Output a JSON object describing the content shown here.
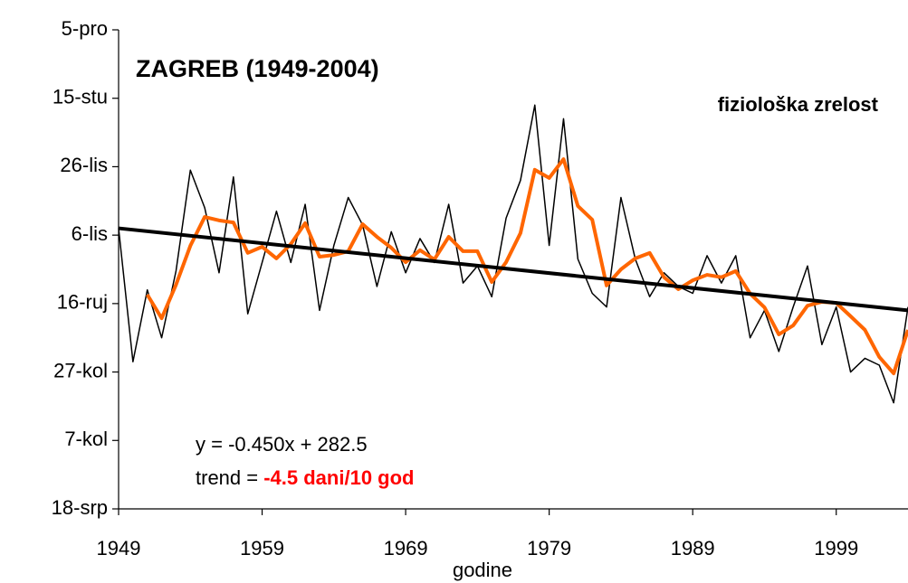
{
  "chart_data": {
    "type": "line",
    "title": "ZAGREB (1949-2004)",
    "subtitle": "fiziološka zrelost",
    "x_label": "godine",
    "annotations": {
      "equation": "y = -0.450x + 282.5",
      "trend_label": "trend = ",
      "trend_value": "-4.5 dani/10 god"
    },
    "xlim": [
      1949,
      2004
    ],
    "xticks": [
      1949,
      1959,
      1969,
      1979,
      1989,
      1999
    ],
    "ylim": [
      199,
      339
    ],
    "yticks": [
      {
        "value": 199,
        "label": "18-srp"
      },
      {
        "value": 219,
        "label": "7-kol"
      },
      {
        "value": 239,
        "label": "27-kol"
      },
      {
        "value": 259,
        "label": "16-ruj"
      },
      {
        "value": 279,
        "label": "6-lis"
      },
      {
        "value": 299,
        "label": "26-lis"
      },
      {
        "value": 319,
        "label": "15-stu"
      },
      {
        "value": 339,
        "label": "5-pro"
      }
    ],
    "grid": false,
    "series": [
      {
        "color": "#000000",
        "width": 1.5,
        "x": [
          1949,
          1950,
          1951,
          1952,
          1953,
          1954,
          1955,
          1956,
          1957,
          1958,
          1959,
          1960,
          1961,
          1962,
          1963,
          1964,
          1965,
          1966,
          1967,
          1968,
          1969,
          1970,
          1971,
          1972,
          1973,
          1974,
          1975,
          1976,
          1977,
          1978,
          1979,
          1980,
          1981,
          1982,
          1983,
          1984,
          1985,
          1986,
          1987,
          1988,
          1989,
          1990,
          1991,
          1992,
          1993,
          1994,
          1995,
          1996,
          1997,
          1998,
          1999,
          2000,
          2001,
          2002,
          2003,
          2004
        ],
        "values": [
          281,
          242,
          263,
          249,
          268.5,
          298,
          287,
          268,
          296,
          256,
          271,
          286,
          271,
          288,
          257,
          276,
          290,
          282,
          264,
          280,
          268,
          278,
          271,
          288,
          265,
          270,
          261,
          284,
          295,
          317,
          276,
          313,
          272,
          262,
          258,
          290,
          272,
          261,
          268,
          264,
          262,
          273,
          265,
          273,
          249,
          257,
          245,
          258,
          270,
          247,
          258,
          239,
          243,
          241,
          230,
          258
        ]
      },
      {
        "color": "#ff6600",
        "width": 4,
        "x": [
          1951,
          1952,
          1953,
          1954,
          1955,
          1956,
          1957,
          1958,
          1959,
          1960,
          1961,
          1962,
          1963,
          1964,
          1965,
          1966,
          1967,
          1968,
          1969,
          1970,
          1971,
          1972,
          1973,
          1974,
          1975,
          1976,
          1977,
          1978,
          1979,
          1980,
          1981,
          1982,
          1983,
          1984,
          1985,
          1986,
          1987,
          1988,
          1989,
          1990,
          1991,
          1992,
          1993,
          1994,
          1995,
          1996,
          1997,
          1998,
          1999,
          2000,
          2001,
          2002,
          2003,
          2004
        ],
        "values": [
          261.6,
          254.7,
          264.5,
          275.9,
          284.3,
          283.3,
          282.7,
          273.8,
          275.6,
          272.2,
          276.4,
          282.5,
          272.7,
          273.2,
          274.3,
          282.2,
          278.5,
          275.3,
          271.1,
          274.6,
          271.9,
          278.5,
          274.3,
          274.3,
          265.3,
          271.1,
          279.6,
          298.1,
          295.7,
          301.2,
          287.5,
          283.5,
          264.3,
          269,
          272.2,
          273.8,
          266.7,
          263.2,
          265.8,
          267.4,
          266.7,
          268.5,
          261.9,
          257.9,
          250,
          252.6,
          258.4,
          259.5,
          259.2,
          255.3,
          251.3,
          243.4,
          238.6,
          251.3
        ]
      },
      {
        "color": "#000000",
        "width": 4,
        "x": [
          1949,
          2004
        ],
        "values": [
          281,
          257
        ]
      }
    ]
  }
}
